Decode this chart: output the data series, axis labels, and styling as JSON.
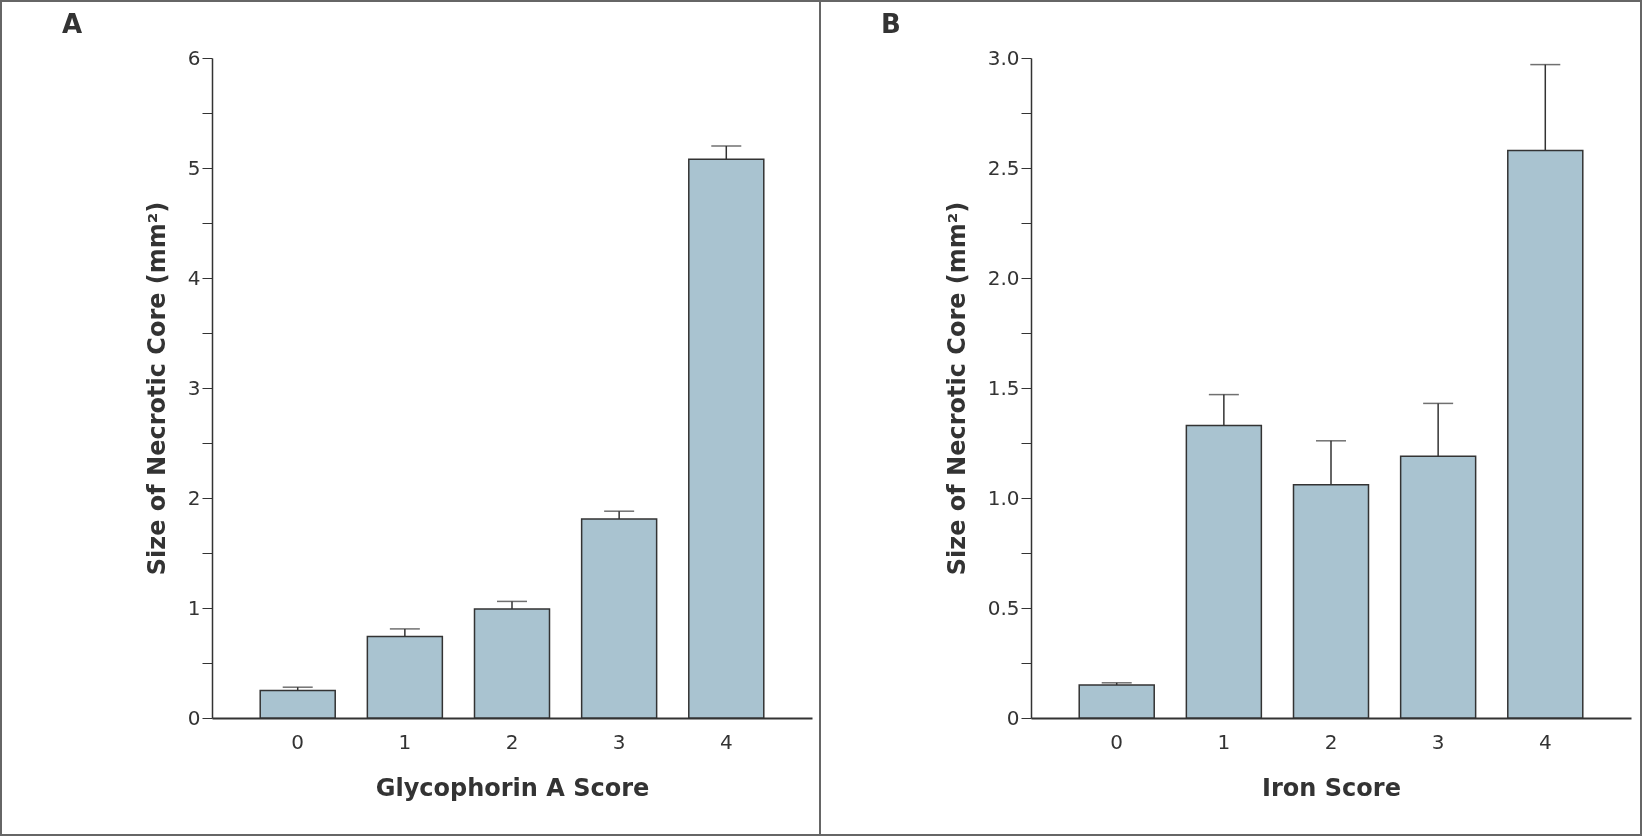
{
  "chart_data": [
    {
      "type": "bar",
      "title": "A",
      "xlabel": "Glycophorin A Score",
      "ylabel": "Size of Necrotic Core (mm²)",
      "categories": [
        "0",
        "1",
        "2",
        "3",
        "4"
      ],
      "series": [
        {
          "color": "#a9c3d0",
          "values": [
            0.25,
            0.74,
            0.99,
            1.81,
            5.08
          ],
          "errors": [
            [
              0.25,
              0.28
            ],
            [
              0.74,
              0.81
            ],
            [
              0.99,
              1.06
            ],
            [
              1.81,
              1.88
            ],
            [
              5.08,
              5.2
            ]
          ]
        }
      ],
      "ylim": [
        0,
        6
      ],
      "yticks": [
        0,
        {
          "value": 0.5,
          "label": null
        },
        1,
        {
          "value": 1.5,
          "label": null
        },
        2,
        {
          "value": 2.5,
          "label": null
        },
        3,
        {
          "value": 3.5,
          "label": null
        },
        4,
        {
          "value": 4.5,
          "label": null
        },
        5,
        {
          "value": 5.5,
          "label": null
        },
        6
      ],
      "grid": false
    },
    {
      "type": "bar",
      "title": "B",
      "xlabel": "Iron Score",
      "ylabel": "Size of Necrotic Core (mm²)",
      "categories": [
        "0",
        "1",
        "2",
        "3",
        "4"
      ],
      "series": [
        {
          "color": "#a9c3d0",
          "values": [
            0.15,
            1.33,
            1.06,
            1.19,
            2.58
          ],
          "errors": [
            [
              0.15,
              0.16
            ],
            [
              1.33,
              1.47
            ],
            [
              1.06,
              1.26
            ],
            [
              1.19,
              1.43
            ],
            [
              2.58,
              2.97
            ]
          ]
        }
      ],
      "ylim": [
        0,
        3
      ],
      "yticks": [
        0,
        {
          "value": 0.25,
          "label": null
        },
        {
          "value": 0.5,
          "label": "0.5"
        },
        {
          "value": 0.75,
          "label": null
        },
        {
          "value": 1,
          "label": "1.0"
        },
        {
          "value": 1.25,
          "label": null
        },
        {
          "value": 1.5,
          "label": "1.5"
        },
        {
          "value": 1.75,
          "label": null
        },
        {
          "value": 2,
          "label": "2.0"
        },
        {
          "value": 2.25,
          "label": null
        },
        {
          "value": 2.5,
          "label": "2.5"
        },
        {
          "value": 2.75,
          "label": null
        },
        {
          "value": 3,
          "label": "3.0"
        }
      ],
      "grid": false
    }
  ]
}
